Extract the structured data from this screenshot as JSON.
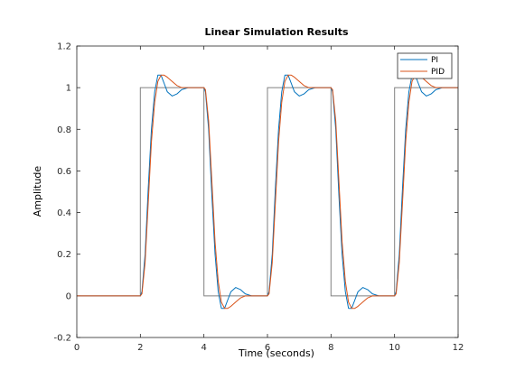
{
  "chart_data": {
    "type": "line",
    "title": "Linear Simulation Results",
    "xlabel": "Time (seconds)",
    "ylabel": "Amplitude",
    "xlim": [
      0,
      12
    ],
    "ylim": [
      -0.2,
      1.2
    ],
    "xticks": [
      0,
      2,
      4,
      6,
      8,
      10,
      12
    ],
    "yticks": [
      -0.2,
      0,
      0.2,
      0.4,
      0.6,
      0.8,
      1,
      1.2
    ],
    "grid": false,
    "legend_position": "top-right",
    "input": {
      "color": "#808080",
      "points": [
        [
          0,
          0
        ],
        [
          2,
          0
        ],
        [
          2,
          1
        ],
        [
          4,
          1
        ],
        [
          4,
          0
        ],
        [
          6,
          0
        ],
        [
          6,
          1
        ],
        [
          8,
          1
        ],
        [
          8,
          0
        ],
        [
          10,
          0
        ],
        [
          10,
          1
        ],
        [
          12,
          1
        ],
        [
          12,
          0.08
        ]
      ]
    },
    "series": [
      {
        "name": "PI",
        "color": "#0072BD",
        "x": [
          0,
          2,
          2.05,
          2.15,
          2.25,
          2.35,
          2.45,
          2.55,
          2.65,
          2.75,
          2.85,
          3.0,
          3.15,
          3.3,
          3.5,
          3.75,
          4.0,
          4.05,
          4.15,
          4.25,
          4.35,
          4.45,
          4.55,
          4.65,
          4.75,
          4.85,
          5.0,
          5.15,
          5.3,
          5.5,
          5.75,
          6.0,
          6.05,
          6.15,
          6.25,
          6.35,
          6.45,
          6.55,
          6.65,
          6.75,
          6.85,
          7.0,
          7.15,
          7.3,
          7.5,
          7.75,
          8.0,
          8.05,
          8.15,
          8.25,
          8.35,
          8.45,
          8.55,
          8.65,
          8.75,
          8.85,
          9.0,
          9.15,
          9.3,
          9.5,
          9.75,
          10.0,
          10.05,
          10.15,
          10.25,
          10.35,
          10.45,
          10.55,
          10.65,
          10.75,
          10.85,
          11.0,
          11.15,
          11.3,
          11.5,
          11.75,
          12.0
        ],
        "y": [
          0,
          0,
          0.02,
          0.2,
          0.52,
          0.8,
          0.98,
          1.06,
          1.06,
          1.02,
          0.98,
          0.96,
          0.97,
          0.99,
          1.0,
          1.0,
          1.0,
          0.98,
          0.8,
          0.48,
          0.2,
          0.02,
          -0.06,
          -0.06,
          -0.02,
          0.02,
          0.04,
          0.03,
          0.01,
          0.0,
          0.0,
          0.0,
          0.02,
          0.2,
          0.52,
          0.8,
          0.98,
          1.06,
          1.06,
          1.02,
          0.98,
          0.96,
          0.97,
          0.99,
          1.0,
          1.0,
          1.0,
          0.98,
          0.8,
          0.48,
          0.2,
          0.02,
          -0.06,
          -0.06,
          -0.02,
          0.02,
          0.04,
          0.03,
          0.01,
          0.0,
          0.0,
          0.0,
          0.02,
          0.2,
          0.52,
          0.8,
          0.98,
          1.06,
          1.06,
          1.02,
          0.98,
          0.96,
          0.97,
          0.99,
          1.0,
          1.0,
          1.0
        ]
      },
      {
        "name": "PID",
        "color": "#D95319",
        "x": [
          0,
          2,
          2.05,
          2.15,
          2.25,
          2.35,
          2.45,
          2.55,
          2.65,
          2.75,
          2.85,
          3.0,
          3.15,
          3.3,
          3.5,
          3.75,
          4.0,
          4.05,
          4.15,
          4.25,
          4.35,
          4.45,
          4.55,
          4.65,
          4.75,
          4.85,
          5.0,
          5.15,
          5.3,
          5.5,
          5.75,
          6.0,
          6.05,
          6.15,
          6.25,
          6.35,
          6.45,
          6.55,
          6.65,
          6.75,
          6.85,
          7.0,
          7.15,
          7.3,
          7.5,
          7.75,
          8.0,
          8.05,
          8.15,
          8.25,
          8.35,
          8.45,
          8.55,
          8.65,
          8.75,
          8.85,
          9.0,
          9.15,
          9.3,
          9.5,
          9.75,
          10.0,
          10.05,
          10.15,
          10.25,
          10.35,
          10.45,
          10.55,
          10.65,
          10.75,
          10.85,
          11.0,
          11.15,
          11.3,
          11.5,
          11.75,
          12.0
        ],
        "y": [
          0,
          0,
          0.01,
          0.16,
          0.45,
          0.74,
          0.93,
          1.03,
          1.06,
          1.06,
          1.05,
          1.03,
          1.01,
          1.0,
          1.0,
          1.0,
          1.0,
          0.99,
          0.84,
          0.55,
          0.26,
          0.07,
          -0.03,
          -0.06,
          -0.06,
          -0.05,
          -0.03,
          -0.01,
          0.0,
          0.0,
          0.0,
          0.0,
          0.01,
          0.16,
          0.45,
          0.74,
          0.93,
          1.03,
          1.06,
          1.06,
          1.05,
          1.03,
          1.01,
          1.0,
          1.0,
          1.0,
          1.0,
          0.99,
          0.84,
          0.55,
          0.26,
          0.07,
          -0.03,
          -0.06,
          -0.06,
          -0.05,
          -0.03,
          -0.01,
          0.0,
          0.0,
          0.0,
          0.0,
          0.01,
          0.16,
          0.45,
          0.74,
          0.93,
          1.03,
          1.06,
          1.06,
          1.05,
          1.03,
          1.01,
          1.0,
          1.0,
          1.0,
          1.0
        ]
      }
    ]
  }
}
